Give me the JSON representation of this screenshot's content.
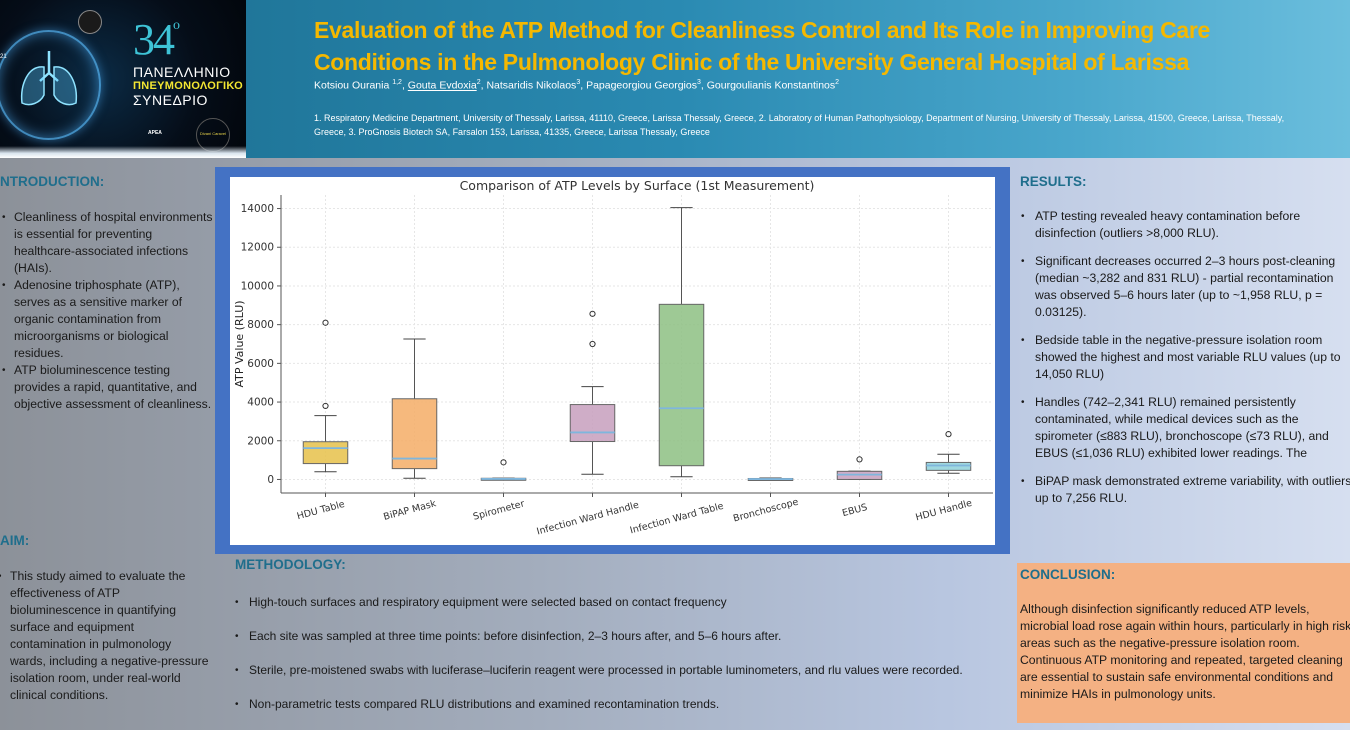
{
  "header": {
    "logo": {
      "number": "34",
      "number_suffix": "ο",
      "line1": "ΠΑΝΕΛΛΗΝΙΟ",
      "line2": "ΠΝΕΥΜΟΝΟΛΟΓΙΚΟ",
      "line3": "ΣΥΝΕΔΡΙΟ",
      "org": "ΑΡΕΑ",
      "venue": "Divani Caravel",
      "side_number": "21"
    },
    "title_line1": "Evaluation of the ATP Method for Cleanliness Control and Its Role in Improving Care",
    "title_line2": "Conditions in the Pulmonology Clinic of the University General Hospital of Larissa",
    "authors": [
      {
        "name": "Kotsiou Ourania ",
        "sup": "1,2",
        "underline": false
      },
      {
        "name": "Gouta Evdoxia",
        "sup": "2",
        "underline": true
      },
      {
        "name": "Natsaridis Nikolaos",
        "sup": "3",
        "underline": false
      },
      {
        "name": "Papageorgiou Georgios",
        "sup": "3",
        "underline": false
      },
      {
        "name": "Gourgoulianis Konstantinos",
        "sup": "2",
        "underline": false
      }
    ],
    "affiliations": "1. Respiratory Medicine Department, University of Thessaly, Larissa, 41110, Greece, Larissa Thessaly, Greece, 2. Laboratory of Human Pathophysiology, Department of Nursing, University of Thessaly, Larissa, 41500, Greece, Larissa, Thessaly, Greece, 3. ProGnosis Biotech SA, Farsalon 153, Larissa, 41335, Greece, Larissa Thessaly, Greece"
  },
  "introduction": {
    "heading": "NTRODUCTION:",
    "bullets": [
      "Cleanliness of hospital environments is essential for preventing healthcare-associated infections (HAIs).",
      "Adenosine triphosphate (ATP), serves as a sensitive marker of organic contamination from microorganisms or biological residues.",
      "ATP bioluminescence testing provides a rapid, quantitative, and objective assessment of cleanliness."
    ]
  },
  "aim": {
    "heading": "AIM:",
    "bullets": [
      "This study aimed to evaluate the effectiveness of ATP bioluminescence in quantifying surface and equipment contamination in pulmonology wards, including a negative-pressure isolation room, under real-world clinical conditions."
    ]
  },
  "methodology": {
    "heading": "METHODOLOGY:",
    "bullets": [
      "High-touch surfaces and respiratory equipment were selected based on contact frequency",
      "Each site was sampled at three time points: before disinfection, 2–3 hours after, and 5–6 hours after.",
      "Sterile, pre-moistened swabs with luciferase–luciferin reagent were processed in portable luminometers, and rlu values were recorded.",
      "Non-parametric tests compared RLU distributions and examined recontamination trends."
    ]
  },
  "results": {
    "heading": "RESULTS:",
    "bullets": [
      "ATP testing revealed heavy contamination before disinfection (outliers >8,000 RLU).",
      "Significant decreases occurred 2–3 hours post-cleaning (median ~3,282 and 831 RLU) - partial recontamination was observed 5–6 hours later (up to ~1,958 RLU, p = 0.03125).",
      "Bedside table in the negative-pressure isolation room showed the highest and most variable RLU values (up to 14,050 RLU)",
      "Handles (742–2,341 RLU) remained persistently contaminated, while medical devices such as the spirometer (≤883 RLU), bronchoscope (≤73 RLU), and EBUS (≤1,036 RLU) exhibited lower readings. The",
      "BiPAP mask demonstrated extreme variability, with outliers up to 7,256 RLU."
    ]
  },
  "conclusion": {
    "heading": "CONCLUSION:",
    "text": "Although disinfection significantly reduced ATP levels, microbial load rose again within hours, particularly in high risk areas such as the negative-pressure isolation room. Continuous ATP monitoring and repeated, targeted cleaning are essential to sustain safe environmental conditions and minimize HAIs in pulmonology units."
  },
  "colors": {
    "title": "#f5b800",
    "heading": "#1f6e8c",
    "chart_frame": "#4472c4",
    "conclusion_bg": "#f4b183"
  },
  "chart_data": {
    "type": "box",
    "title": "Comparison of ATP Levels by Surface (1st Measurement)",
    "xlabel": "",
    "ylabel": "ATP Value (RLU)",
    "ylim": [
      -700,
      14700
    ],
    "yticks": [
      0,
      2000,
      4000,
      6000,
      8000,
      10000,
      12000,
      14000
    ],
    "grid": true,
    "categories": [
      "HDU Table",
      "BiPAP Mask",
      "Spirometer",
      "Infection Ward Handle",
      "Infection Ward Table",
      "Bronchoscope",
      "EBUS",
      "HDU Handle"
    ],
    "series": [
      {
        "name": "HDU Table",
        "color": "#e6c14a",
        "whislo": 400,
        "q1": 820,
        "med": 1620,
        "q3": 1950,
        "whishi": 3300,
        "fliers": [
          3800,
          8100
        ]
      },
      {
        "name": "BiPAP Mask",
        "color": "#f4ad66",
        "whislo": 60,
        "q1": 560,
        "med": 1080,
        "q3": 4170,
        "whishi": 7256,
        "fliers": []
      },
      {
        "name": "Spirometer",
        "color": "#6aa9d4",
        "whislo": 0,
        "q1": 10,
        "med": 30,
        "q3": 60,
        "whishi": 70,
        "fliers": [
          883
        ]
      },
      {
        "name": "Infection Ward Handle",
        "color": "#c79fbd",
        "whislo": 270,
        "q1": 1960,
        "med": 2430,
        "q3": 3870,
        "whishi": 4800,
        "fliers": [
          7000,
          8560
        ]
      },
      {
        "name": "Infection Ward Table",
        "color": "#8dbf82",
        "whislo": 140,
        "q1": 710,
        "med": 3680,
        "q3": 9050,
        "whishi": 14050,
        "fliers": []
      },
      {
        "name": "Bronchoscope",
        "color": "#6aa9d4",
        "whislo": 0,
        "q1": 5,
        "med": 20,
        "q3": 50,
        "whishi": 73,
        "fliers": []
      },
      {
        "name": "EBUS",
        "color": "#c79fbd",
        "whislo": 0,
        "q1": 0,
        "med": 250,
        "q3": 420,
        "whishi": 430,
        "fliers": [
          1036
        ]
      },
      {
        "name": "HDU Handle",
        "color": "#8ed1da",
        "whislo": 320,
        "q1": 470,
        "med": 720,
        "q3": 880,
        "whishi": 1300,
        "fliers": [
          2341
        ]
      }
    ]
  }
}
